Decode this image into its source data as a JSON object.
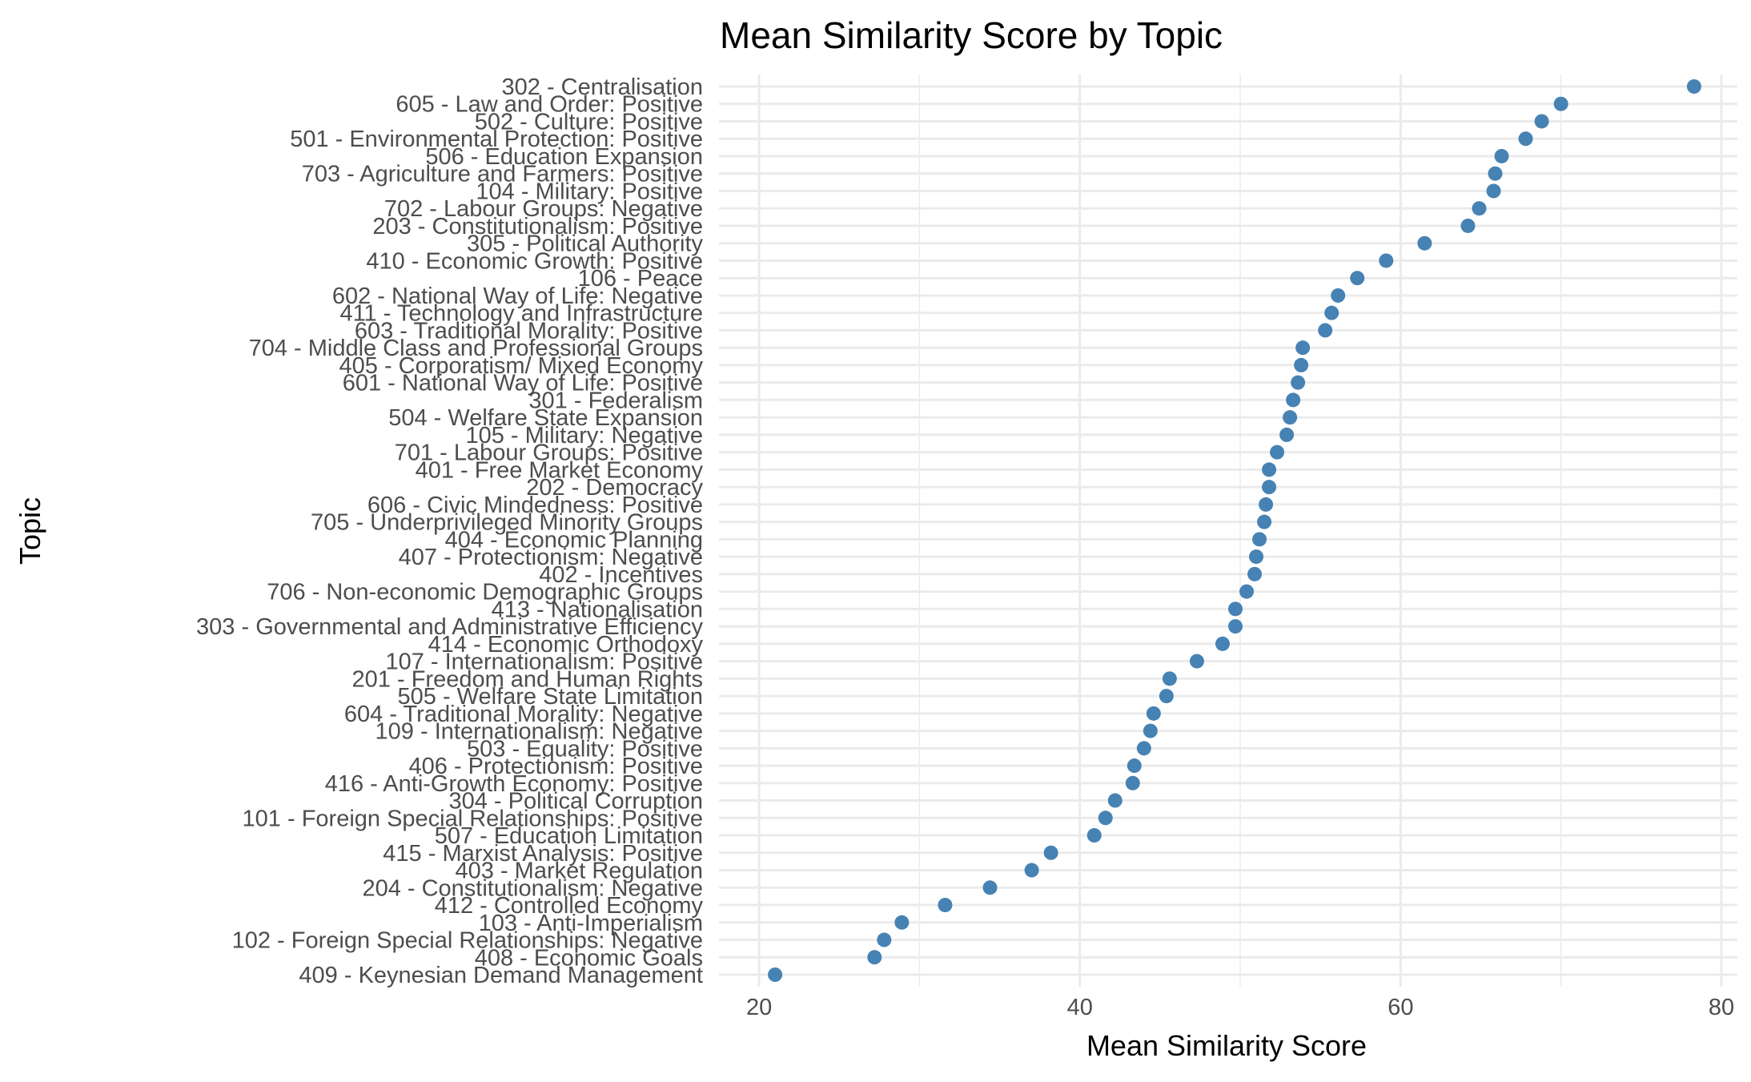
{
  "chart_data": {
    "type": "scatter",
    "title": "Mean Similarity Score by Topic",
    "xlabel": "Mean Similarity Score",
    "ylabel": "Topic",
    "xlim": [
      17.5,
      81
    ],
    "xticks": [
      20,
      40,
      60,
      80
    ],
    "grid": true,
    "legend": "none",
    "point_color": "#4682B4",
    "points": [
      {
        "label": "302 - Centralisation",
        "value": 78.3
      },
      {
        "label": "605 - Law and Order: Positive",
        "value": 70.0
      },
      {
        "label": "502 - Culture: Positive",
        "value": 68.8
      },
      {
        "label": "501 - Environmental Protection: Positive",
        "value": 67.8
      },
      {
        "label": "506 - Education Expansion",
        "value": 66.3
      },
      {
        "label": "703 - Agriculture and Farmers: Positive",
        "value": 65.9
      },
      {
        "label": "104 - Military: Positive",
        "value": 65.8
      },
      {
        "label": "702 - Labour Groups: Negative",
        "value": 64.9
      },
      {
        "label": "203 - Constitutionalism: Positive",
        "value": 64.2
      },
      {
        "label": "305 - Political Authority",
        "value": 61.5
      },
      {
        "label": "410 - Economic Growth: Positive",
        "value": 59.1
      },
      {
        "label": "106 - Peace",
        "value": 57.3
      },
      {
        "label": "602 - National Way of Life: Negative",
        "value": 56.1
      },
      {
        "label": "411 - Technology and Infrastructure",
        "value": 55.7
      },
      {
        "label": "603 - Traditional Morality: Positive",
        "value": 55.3
      },
      {
        "label": "704 - Middle Class and Professional Groups",
        "value": 53.9
      },
      {
        "label": "405 - Corporatism/ Mixed Economy",
        "value": 53.8
      },
      {
        "label": "601 - National Way of Life: Positive",
        "value": 53.6
      },
      {
        "label": "301 - Federalism",
        "value": 53.3
      },
      {
        "label": "504 - Welfare State Expansion",
        "value": 53.1
      },
      {
        "label": "105 - Military: Negative",
        "value": 52.9
      },
      {
        "label": "701 - Labour Groups: Positive",
        "value": 52.3
      },
      {
        "label": "401 - Free Market Economy",
        "value": 51.8
      },
      {
        "label": "202 - Democracy",
        "value": 51.8
      },
      {
        "label": "606 - Civic Mindedness: Positive",
        "value": 51.6
      },
      {
        "label": "705 - Underprivileged Minority Groups",
        "value": 51.5
      },
      {
        "label": "404 - Economic Planning",
        "value": 51.2
      },
      {
        "label": "407 - Protectionism: Negative",
        "value": 51.0
      },
      {
        "label": "402 - Incentives",
        "value": 50.9
      },
      {
        "label": "706 - Non-economic Demographic Groups",
        "value": 50.4
      },
      {
        "label": "413 - Nationalisation",
        "value": 49.7
      },
      {
        "label": "303 - Governmental and Administrative Efficiency",
        "value": 49.7
      },
      {
        "label": "414 - Economic Orthodoxy",
        "value": 48.9
      },
      {
        "label": "107 - Internationalism: Positive",
        "value": 47.3
      },
      {
        "label": "201 - Freedom and Human Rights",
        "value": 45.6
      },
      {
        "label": "505 - Welfare State Limitation",
        "value": 45.4
      },
      {
        "label": "604 - Traditional Morality: Negative",
        "value": 44.6
      },
      {
        "label": "109 - Internationalism: Negative",
        "value": 44.4
      },
      {
        "label": "503 - Equality: Positive",
        "value": 44.0
      },
      {
        "label": "406 - Protectionism: Positive",
        "value": 43.4
      },
      {
        "label": "416 - Anti-Growth Economy: Positive",
        "value": 43.3
      },
      {
        "label": "304 - Political Corruption",
        "value": 42.2
      },
      {
        "label": "101 - Foreign Special Relationships: Positive",
        "value": 41.6
      },
      {
        "label": "507 - Education Limitation",
        "value": 40.9
      },
      {
        "label": "415 - Marxist Analysis: Positive",
        "value": 38.2
      },
      {
        "label": "403 - Market Regulation",
        "value": 37.0
      },
      {
        "label": "204 - Constitutionalism: Negative",
        "value": 34.4
      },
      {
        "label": "412 - Controlled Economy",
        "value": 31.6
      },
      {
        "label": "103 - Anti-Imperialism",
        "value": 28.9
      },
      {
        "label": "102 - Foreign Special Relationships: Negative",
        "value": 27.8
      },
      {
        "label": "408 - Economic Goals",
        "value": 27.2
      },
      {
        "label": "409 - Keynesian Demand Management",
        "value": 21.0
      }
    ]
  }
}
